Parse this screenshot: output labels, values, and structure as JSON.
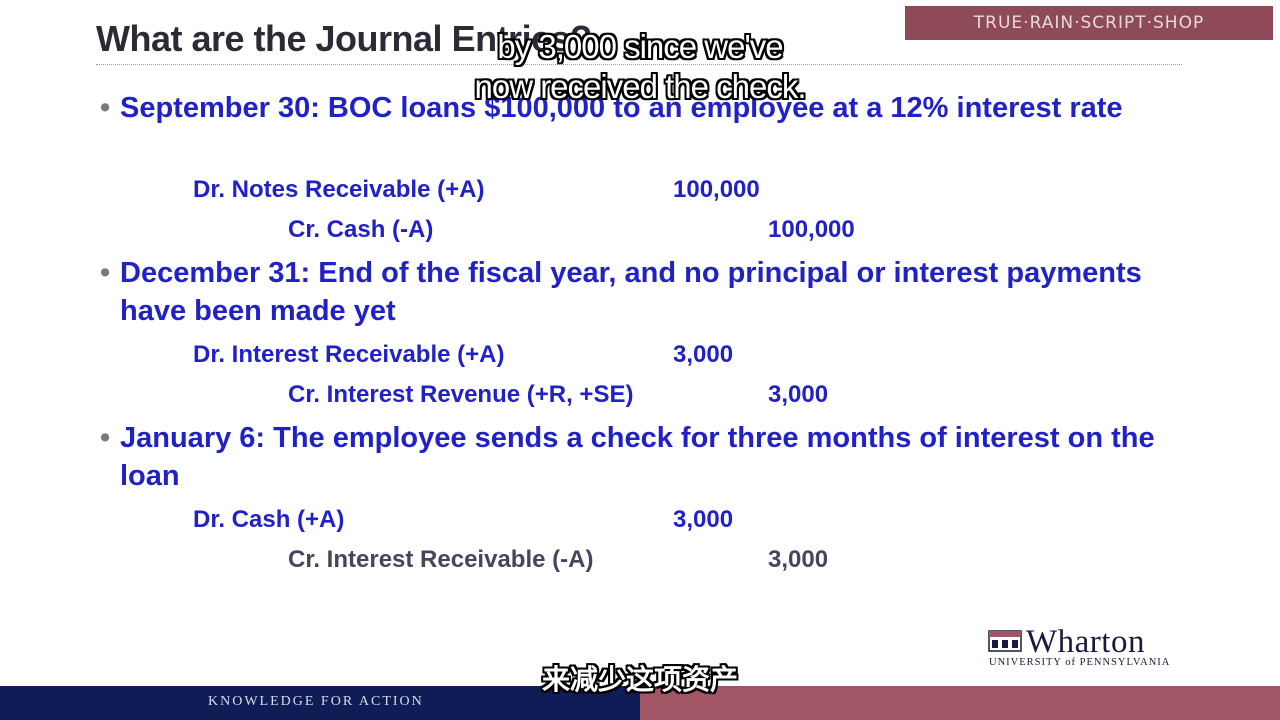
{
  "slide": {
    "title": "What are the Journal Entries?",
    "watermark_text": "TRUE·RAIN·SCRIPT·SHOP"
  },
  "subtitles": {
    "english_line1": "by 3,000 since we've",
    "english_line2": "now received the check.",
    "chinese": "来减少这项资产"
  },
  "bullets": [
    {
      "symbol": "•",
      "text": "September 30: BOC loans $100,000 to an employee at a 12% interest rate",
      "entries": [
        {
          "label": "Dr. Notes Receivable (+A)",
          "amount": "100,000"
        },
        {
          "label": "Cr. Cash (-A)",
          "amount": "100,000"
        }
      ]
    },
    {
      "symbol": "•",
      "text": "December 31: End of the fiscal year, and no principal or interest payments have been made yet",
      "entries": [
        {
          "label": "Dr. Interest Receivable (+A)",
          "amount": "3,000"
        },
        {
          "label": "Cr. Interest Revenue (+R, +SE)",
          "amount": "3,000"
        }
      ]
    },
    {
      "symbol": "•",
      "text": "January 6: The employee sends a check for three months of interest on the loan",
      "entries": [
        {
          "label": "Dr. Cash (+A)",
          "amount": "3,000"
        },
        {
          "label": "Cr. Interest Receivable (-A)",
          "amount": "3,000"
        }
      ]
    }
  ],
  "logo": {
    "wordmark": "Wharton",
    "subtitle": "UNIVERSITY of PENNSYLVANIA"
  },
  "footer": {
    "tagline": "KNOWLEDGE FOR ACTION"
  },
  "colors": {
    "bullet_text": "#2121c8",
    "title": "#2b2b35",
    "footer_navy": "#0f1c55",
    "footer_maroon": "#a25564"
  }
}
